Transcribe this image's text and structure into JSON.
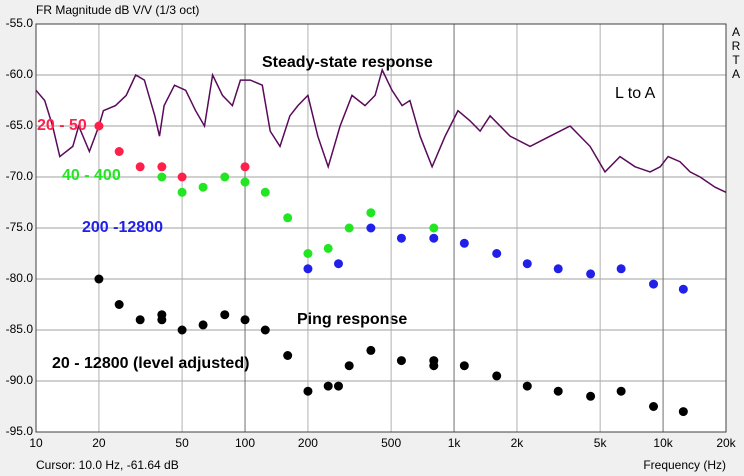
{
  "chart_data": {
    "type": "scatter",
    "title": "FR Magnitude dB V/V (1/3 oct)",
    "brand": [
      "A",
      "R",
      "T",
      "A"
    ],
    "cursor_text": "Cursor: 10.0 Hz, -61.64 dB",
    "xlabel": "Frequency (Hz)",
    "annotations": [
      "L to A",
      "Ping response"
    ],
    "xscale": "log",
    "grid": true,
    "xlim": [
      10,
      20000
    ],
    "ylim": [
      -95,
      -55
    ],
    "xticks": [
      10,
      20,
      50,
      100,
      200,
      500,
      {
        "value": 1000,
        "label": "1k"
      },
      {
        "value": 2000,
        "label": "2k"
      },
      {
        "value": 5000,
        "label": "5k"
      },
      {
        "value": 10000,
        "label": "10k"
      },
      {
        "value": 20000,
        "label": "20k"
      }
    ],
    "yticks": [
      {
        "value": -95,
        "label": "-95.0"
      },
      {
        "value": -90,
        "label": "-90.0"
      },
      {
        "value": -85,
        "label": "-85.0"
      },
      {
        "value": -80,
        "label": "-80.0"
      },
      {
        "value": -75,
        "label": "-75.0"
      },
      {
        "value": -70,
        "label": "-70.0"
      },
      {
        "value": -65,
        "label": "-65.0"
      },
      {
        "value": -60,
        "label": "-60.0"
      },
      {
        "value": -55,
        "label": "-55.0"
      }
    ],
    "series": [
      {
        "name": "Steady-state response",
        "type": "line",
        "color": "#5a0a5a",
        "x": [
          10,
          11,
          12,
          13,
          15,
          16,
          18,
          20,
          21,
          24,
          27,
          30,
          33,
          37,
          39,
          41,
          46,
          52,
          58,
          64,
          70,
          78,
          87,
          95,
          106,
          121,
          132,
          147,
          164,
          179,
          200,
          223,
          250,
          285,
          325,
          375,
          419,
          453,
          505,
          564,
          615,
          688,
          785,
          906,
          1045,
          1194,
          1332,
          1487,
          1854,
          2312,
          2879,
          3592,
          4477,
          5272,
          6223,
          7345,
          8670,
          9683,
          10570,
          12050,
          13460,
          15030,
          17740,
          20000
        ],
        "values": [
          -61.5,
          -62.5,
          -65,
          -68,
          -67,
          -65,
          -67.5,
          -65,
          -63.5,
          -63,
          -62,
          -60,
          -60.5,
          -64,
          -66,
          -63,
          -61,
          -61.5,
          -63.5,
          -65,
          -60,
          -62,
          -63,
          -60.5,
          -60.5,
          -61,
          -65.5,
          -67,
          -64,
          -63,
          -62,
          -66,
          -69,
          -65,
          -62,
          -63,
          -62,
          -59.5,
          -61.5,
          -63,
          -62.5,
          -66,
          -69,
          -66,
          -63.5,
          -64.5,
          -65.5,
          -64,
          -66,
          -67,
          -66,
          -65,
          -67,
          -69.5,
          -68,
          -69,
          -69.5,
          -69,
          -68,
          -68.5,
          -69.5,
          -70,
          -71,
          -71.5
        ]
      },
      {
        "name": "20 - 50",
        "type": "scatter",
        "color": "#ff1f4b",
        "x": [
          20,
          25,
          31.5,
          40,
          50,
          100
        ],
        "values": [
          -65,
          -67.5,
          -69,
          -69,
          -70,
          -69
        ]
      },
      {
        "name": "40 - 400",
        "type": "scatter",
        "color": "#22e622",
        "x": [
          40,
          50,
          63,
          80,
          100,
          125,
          160,
          200,
          250,
          315,
          400,
          800
        ],
        "values": [
          -70,
          -71.5,
          -71,
          -70,
          -70.5,
          -71.5,
          -74,
          -77.5,
          -77,
          -75,
          -73.5,
          -75
        ]
      },
      {
        "name": "200 -12800",
        "type": "scatter",
        "color": "#2020e8",
        "x": [
          200,
          280,
          400,
          560,
          800,
          1120,
          1600,
          2240,
          3150,
          4500,
          6300,
          9000,
          12500
        ],
        "values": [
          -79,
          -78.5,
          -75,
          -76,
          -76,
          -76.5,
          -77.5,
          -78.5,
          -79,
          -79.5,
          -79,
          -80.5,
          -81
        ]
      },
      {
        "name": "20 - 12800 (level adjusted)",
        "type": "scatter",
        "color": "#000000",
        "x": [
          20,
          25,
          31.5,
          40,
          40,
          50,
          63,
          80,
          100,
          125,
          160,
          200,
          250,
          280,
          315,
          400,
          560,
          800,
          800,
          1120,
          1600,
          2240,
          3150,
          4500,
          6300,
          9000,
          12500
        ],
        "values": [
          -80,
          -82.5,
          -84,
          -83.5,
          -84,
          -85,
          -84.5,
          -83.5,
          -84,
          -85,
          -87.5,
          -91,
          -90.5,
          -90.5,
          -88.5,
          -87,
          -88,
          -88,
          -88.5,
          -88.5,
          -89.5,
          -90.5,
          -91,
          -91.5,
          -91,
          -92.5,
          -93
        ]
      }
    ]
  }
}
